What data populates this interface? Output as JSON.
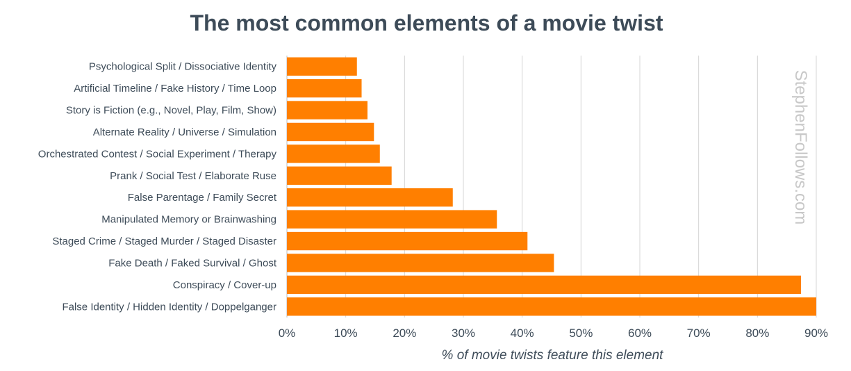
{
  "chart_data": {
    "type": "bar",
    "orientation": "horizontal",
    "title": "The most common elements of a movie twist",
    "xlabel": "% of movie twists feature this element",
    "ylabel": "",
    "watermark": "StephenFollows.com",
    "bar_color": "#ff7f00",
    "grid": true,
    "xlim": [
      0,
      90
    ],
    "x_ticks": [
      "0%",
      "10%",
      "20%",
      "30%",
      "40%",
      "50%",
      "60%",
      "70%",
      "80%",
      "90%"
    ],
    "categories": [
      "Psychological Split / Dissociative Identity",
      "Artificial Timeline / Fake History / Time Loop",
      "Story is Fiction (e.g., Novel, Play, Film, Show)",
      "Alternate Reality / Universe / Simulation",
      "Orchestrated Contest / Social Experiment / Therapy",
      "Prank / Social Test / Elaborate Ruse",
      "False Parentage / Family Secret",
      "Manipulated Memory or Brainwashing",
      "Staged Crime / Staged Murder / Staged Disaster",
      "Fake Death / Faked Survival / Ghost",
      "Conspiracy / Cover-up",
      "False Identity / Hidden Identity / Doppelganger"
    ],
    "values": [
      11.9,
      12.7,
      13.7,
      14.8,
      15.8,
      17.8,
      28.2,
      35.7,
      40.9,
      45.4,
      87.4,
      90.0
    ]
  }
}
